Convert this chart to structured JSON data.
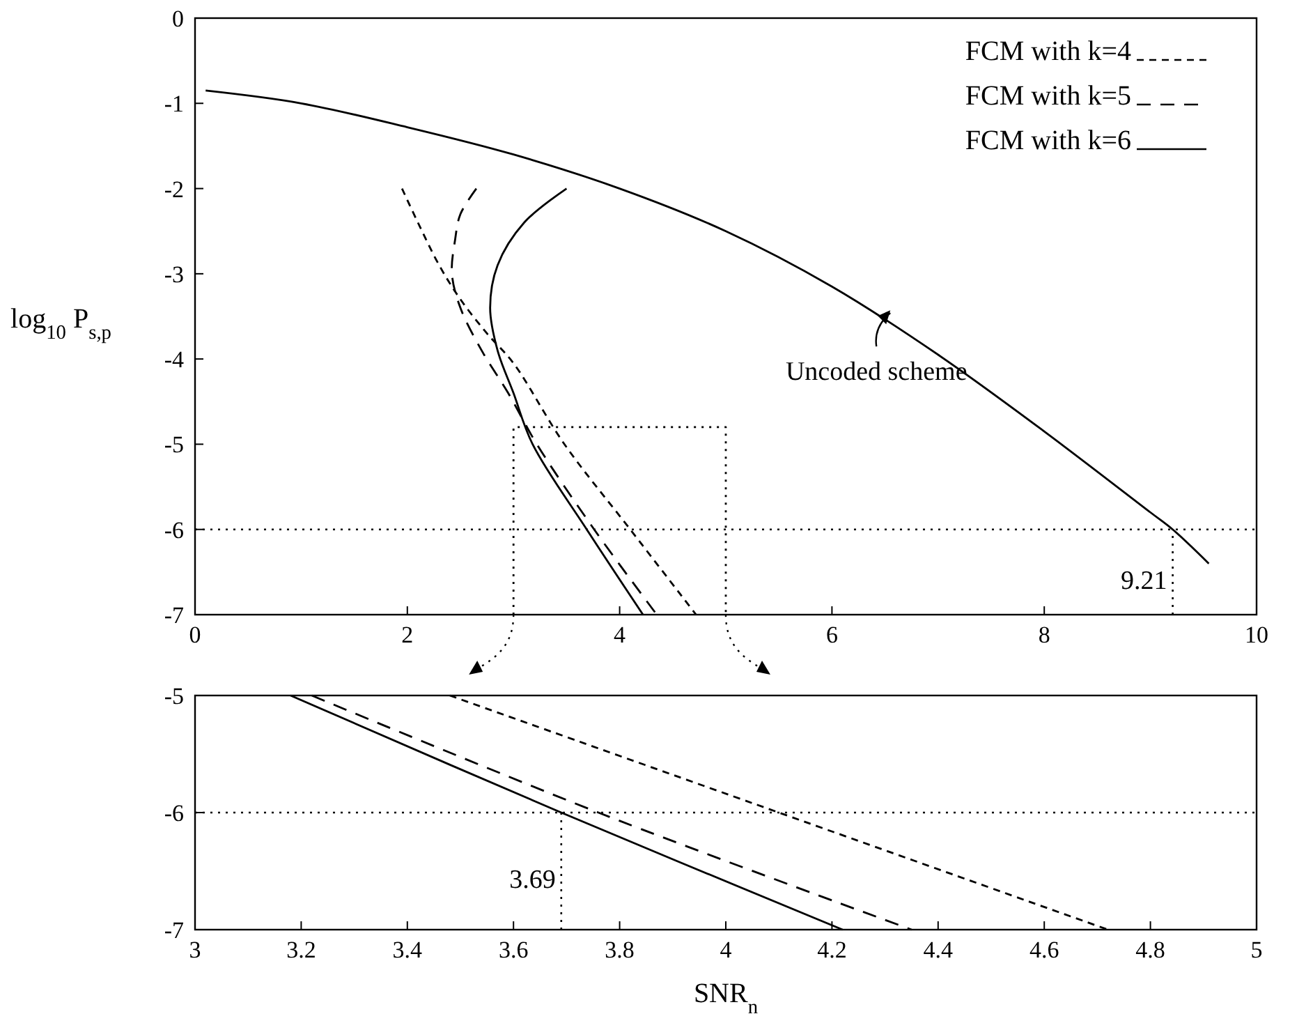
{
  "chart_data": [
    {
      "type": "line",
      "ylabel": "log$_{10}$ P$_{s,p}$",
      "xlim": [
        0,
        10
      ],
      "ylim": [
        -7,
        0
      ],
      "xticks": [
        0,
        2,
        4,
        6,
        8,
        10
      ],
      "yticks": [
        0,
        -1,
        -2,
        -3,
        -4,
        -5,
        -6,
        -7
      ],
      "legend": "top right",
      "grid": false,
      "series": [
        {
          "name": "FCM with k=4",
          "color": "#000000",
          "line_style": "dashed",
          "x": [
            1.95,
            2.1,
            2.3,
            2.5,
            2.75,
            3.0,
            3.48,
            4.1,
            4.72
          ],
          "values": [
            -2,
            -2.4,
            -2.9,
            -3.3,
            -3.7,
            -4.05,
            -5,
            -6,
            -7
          ]
        },
        {
          "name": "FCM with k=5",
          "color": "#000000",
          "line_style": "longdash",
          "x": [
            2.65,
            2.5,
            2.45,
            2.42,
            2.5,
            2.7,
            2.95,
            3.22,
            3.76,
            4.35
          ],
          "values": [
            -2,
            -2.3,
            -2.6,
            -3,
            -3.4,
            -3.9,
            -4.4,
            -5,
            -6,
            -7
          ]
        },
        {
          "name": "FCM with k=6",
          "color": "#000000",
          "line_style": "solid",
          "x": [
            3.5,
            3.1,
            2.85,
            2.78,
            2.85,
            3.0,
            3.18,
            3.69,
            4.22
          ],
          "values": [
            -2,
            -2.4,
            -2.9,
            -3.4,
            -3.9,
            -4.4,
            -5,
            -6,
            -7
          ]
        },
        {
          "color": "#000000",
          "line_style": "dotted",
          "x": [
            3,
            3,
            5,
            5
          ],
          "values": [
            -7,
            -4.8,
            -4.8,
            -7
          ]
        },
        {
          "color": "#000000",
          "line_style": "solid",
          "x": [
            0.1,
            1,
            2,
            3,
            4,
            5,
            6,
            7,
            8,
            9,
            9.21,
            9.55
          ],
          "values": [
            -0.85,
            -1.0,
            -1.28,
            -1.6,
            -2.0,
            -2.5,
            -3.15,
            -3.95,
            -4.85,
            -5.8,
            -6,
            -6.4
          ]
        }
      ],
      "ref_lines": [
        {
          "axis": "y",
          "value": -6,
          "line_style": "dotted"
        },
        {
          "axis": "x",
          "value": 9.21,
          "label": "9.21",
          "line_style": "dotted"
        }
      ],
      "annotations": [
        "Uncoded scheme"
      ]
    },
    {
      "type": "line",
      "xlabel": "SNR$_{n}$",
      "xlim": [
        3,
        5
      ],
      "ylim": [
        -7,
        -5
      ],
      "xticks": [
        3,
        3.2,
        3.4,
        3.6,
        3.8,
        4,
        4.2,
        4.4,
        4.6,
        4.8,
        5
      ],
      "yticks": [
        -5,
        -6,
        -7
      ],
      "grid": false,
      "series": [
        {
          "color": "#000000",
          "line_style": "dashed",
          "x": [
            3.48,
            4.1,
            4.72
          ],
          "values": [
            -5,
            -6,
            -7
          ]
        },
        {
          "color": "#000000",
          "line_style": "longdash",
          "x": [
            3.22,
            3.76,
            4.35
          ],
          "values": [
            -5,
            -6,
            -7
          ]
        },
        {
          "color": "#000000",
          "line_style": "solid",
          "x": [
            3.18,
            3.69,
            4.22
          ],
          "values": [
            -5,
            -6,
            -7
          ]
        }
      ],
      "ref_lines": [
        {
          "axis": "y",
          "value": -6,
          "line_style": "dotted"
        },
        {
          "axis": "x",
          "value": 3.69,
          "label": "3.69",
          "line_style": "dotted"
        }
      ]
    }
  ]
}
